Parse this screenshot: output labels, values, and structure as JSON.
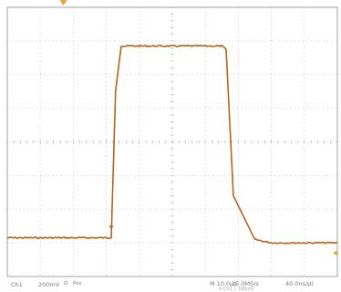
{
  "status_bar": {
    "channel": "Ch1",
    "volts_per_div": "200mV",
    "coupling_symbol": "Ω",
    "trigger_label": "Pos",
    "time_per_div": "M 10.0μs",
    "sample_rate": "25.0MS/s",
    "resolution": "40.0ns/pt",
    "sub_line": "A Ch1 ∫ 188mV"
  },
  "colors": {
    "trace": "#b5651d",
    "grid": "#bdbdbd",
    "frame": "#8c8c8c",
    "marker": "#e8a33a"
  },
  "chart_data": {
    "type": "line",
    "title": "",
    "xlabel": "",
    "ylabel": "",
    "x_unit": "μs",
    "y_unit": "divisions",
    "grid": true,
    "xlim": [
      -50,
      50
    ],
    "ylim": [
      -4,
      4
    ],
    "series": [
      {
        "x": [
          -50,
          -18.5,
          -17.2,
          -15.5,
          15,
          16.3,
          18.5,
          25,
          30,
          50
        ],
        "y": [
          -2.85,
          -2.85,
          1.5,
          2.85,
          2.85,
          2.75,
          -1.6,
          -2.9,
          -3.0,
          -3.0
        ]
      }
    ],
    "markers": {
      "trigger_position_x": -33,
      "trigger_level_div": 0.7
    }
  }
}
